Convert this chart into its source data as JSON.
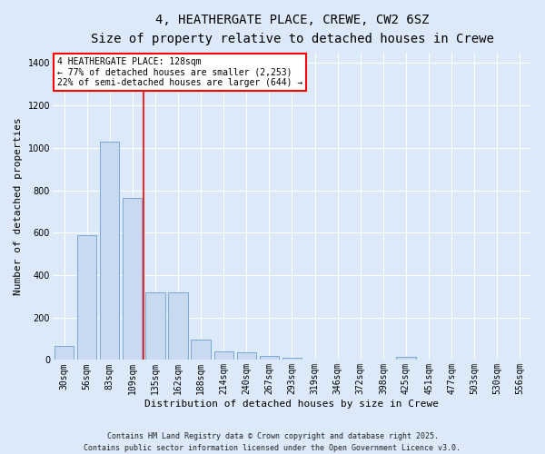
{
  "title_line1": "4, HEATHERGATE PLACE, CREWE, CW2 6SZ",
  "title_line2": "Size of property relative to detached houses in Crewe",
  "xlabel": "Distribution of detached houses by size in Crewe",
  "ylabel": "Number of detached properties",
  "categories": [
    "30sqm",
    "56sqm",
    "83sqm",
    "109sqm",
    "135sqm",
    "162sqm",
    "188sqm",
    "214sqm",
    "240sqm",
    "267sqm",
    "293sqm",
    "319sqm",
    "346sqm",
    "372sqm",
    "398sqm",
    "425sqm",
    "451sqm",
    "477sqm",
    "503sqm",
    "530sqm",
    "556sqm"
  ],
  "values": [
    65,
    590,
    1030,
    765,
    320,
    320,
    95,
    40,
    35,
    20,
    10,
    0,
    0,
    0,
    0,
    15,
    0,
    0,
    0,
    0,
    0
  ],
  "bar_color": "#c9d9f0",
  "bar_edge_color": "#7aa8d4",
  "red_line_x": 3.5,
  "annotation_text": "4 HEATHERGATE PLACE: 128sqm\n← 77% of detached houses are smaller (2,253)\n22% of semi-detached houses are larger (644) →",
  "annotation_box_color": "white",
  "annotation_box_edge_color": "red",
  "vline_color": "red",
  "ylim": [
    0,
    1450
  ],
  "yticks": [
    0,
    200,
    400,
    600,
    800,
    1000,
    1200,
    1400
  ],
  "background_color": "#dce9f8",
  "plot_bg_color": "#dce9f8",
  "grid_color": "#ffffff",
  "footer_line1": "Contains HM Land Registry data © Crown copyright and database right 2025.",
  "footer_line2": "Contains public sector information licensed under the Open Government Licence v3.0.",
  "title_fontsize": 10,
  "subtitle_fontsize": 9,
  "ylabel_fontsize": 8,
  "xlabel_fontsize": 8,
  "tick_fontsize": 7,
  "annot_fontsize": 7,
  "footer_fontsize": 6
}
